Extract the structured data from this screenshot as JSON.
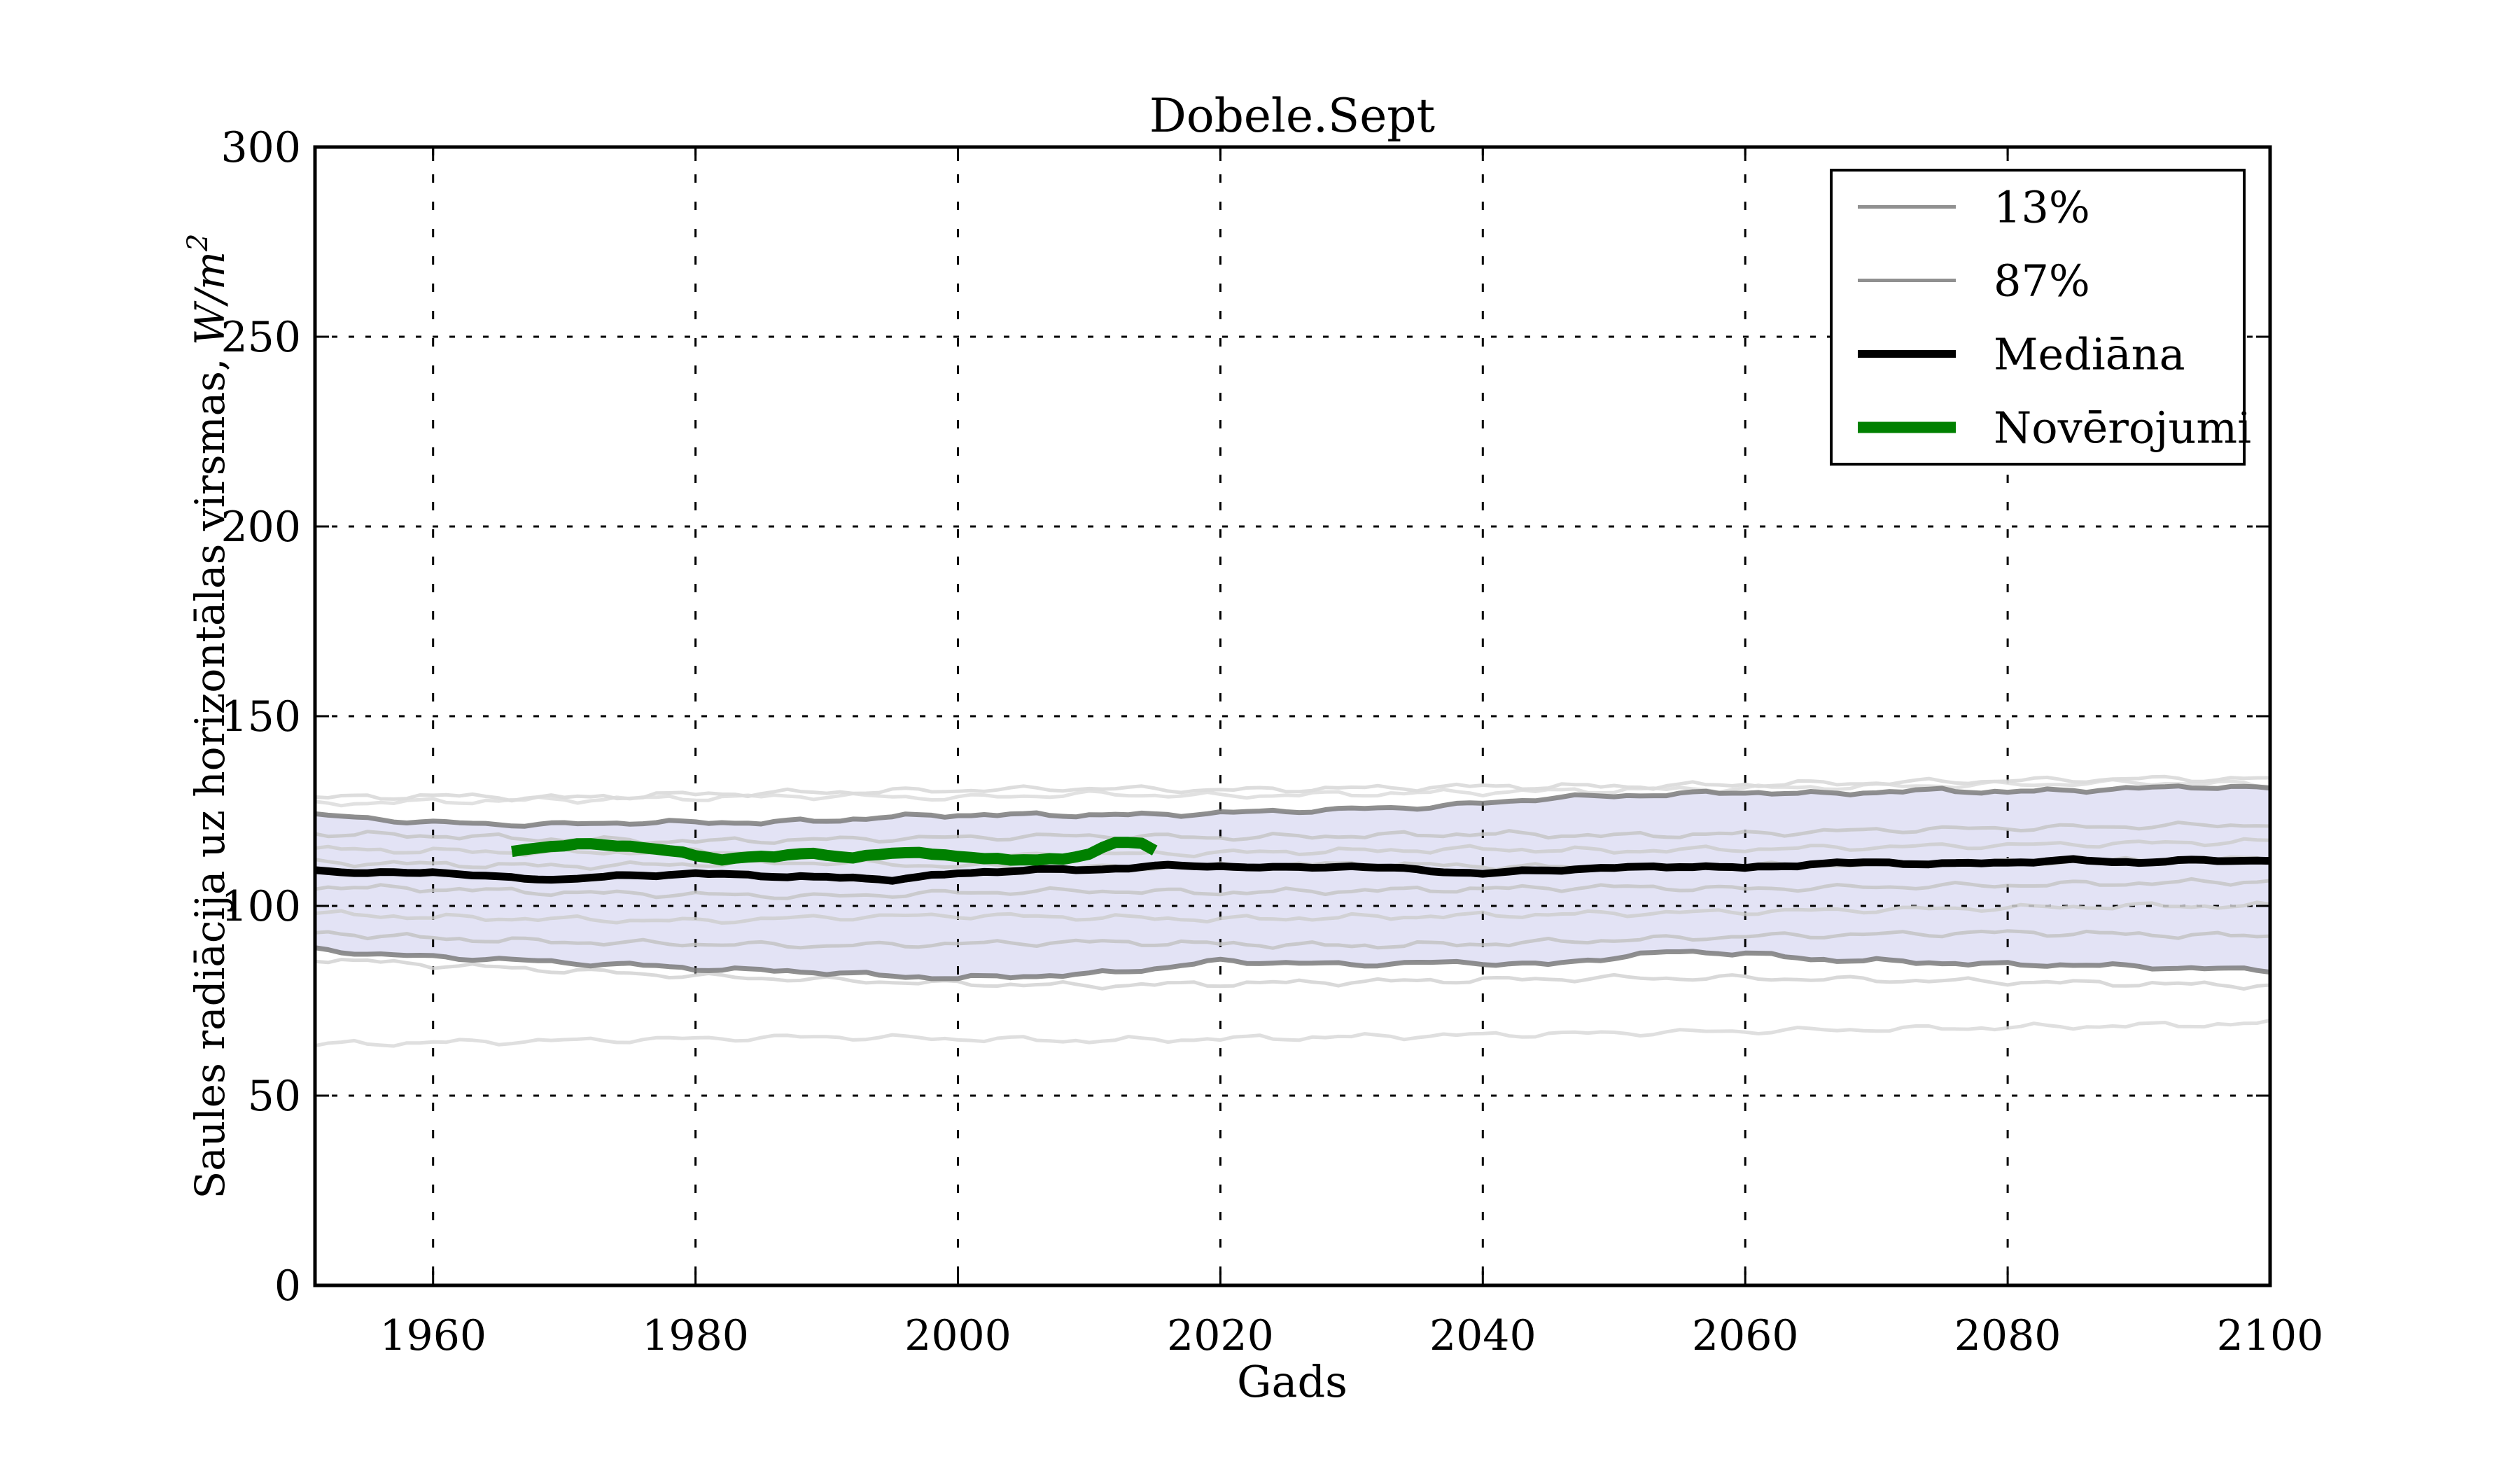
{
  "figure": {
    "title": "Dobele.Sept",
    "xlabel": "Gads",
    "ylabel_main": "Saules radiācija uz horizontālas virsmas, ",
    "ylabel_unit": "W/m",
    "ylabel_exponent": "2"
  },
  "chart_data": {
    "type": "line",
    "title": "Dobele.Sept",
    "xlabel": "Gads",
    "ylabel": "Saules radiācija uz horizontālas virsmas, W/m^2",
    "xlim": [
      1951,
      2100
    ],
    "ylim": [
      0,
      300
    ],
    "xticks": [
      1960,
      1980,
      2000,
      2020,
      2040,
      2060,
      2080,
      2100
    ],
    "yticks": [
      0,
      50,
      100,
      150,
      200,
      250,
      300
    ],
    "grid": true,
    "legend_position": "upper right",
    "colors": {
      "median": "#000000",
      "observations": "#008000",
      "percentile_edge": "#7b7b7b",
      "band_fill": "#e3e3f5",
      "grid": "#000000",
      "spine": "#000000"
    },
    "legend": [
      {
        "label": "13%",
        "color": "#909090",
        "line_width": 5
      },
      {
        "label": "87%",
        "color": "#909090",
        "line_width": 5
      },
      {
        "label": "Mediāna",
        "color": "#000000",
        "line_width": 11
      },
      {
        "label": "Novērojumi",
        "color": "#008000",
        "line_width": 16
      }
    ],
    "series": {
      "p13": {
        "label": "13%",
        "years": [
          1951,
          1955,
          1960,
          1965,
          1970,
          1975,
          1980,
          1985,
          1990,
          1995,
          2000,
          2005,
          2010,
          2015,
          2020,
          2025,
          2030,
          2035,
          2040,
          2045,
          2050,
          2055,
          2060,
          2065,
          2070,
          2075,
          2080,
          2085,
          2090,
          2095,
          2100
        ],
        "values": [
          88.5,
          87.5,
          86.5,
          86.0,
          85.0,
          84.5,
          83.5,
          83.0,
          82.5,
          81.5,
          81.0,
          81.5,
          82.0,
          83.5,
          85.5,
          85.0,
          84.5,
          85.0,
          85.0,
          84.5,
          86.5,
          88.0,
          87.5,
          86.0,
          85.5,
          85.0,
          84.5,
          84.5,
          84.0,
          83.5,
          83.0
        ]
      },
      "p87": {
        "label": "87%",
        "years": [
          1951,
          1955,
          1960,
          1965,
          1970,
          1975,
          1980,
          1985,
          1990,
          1995,
          2000,
          2005,
          2010,
          2015,
          2020,
          2025,
          2030,
          2035,
          2040,
          2045,
          2050,
          2055,
          2060,
          2065,
          2070,
          2075,
          2080,
          2085,
          2090,
          2095,
          2100
        ],
        "values": [
          124.0,
          123.0,
          122.0,
          121.5,
          121.5,
          122.0,
          122.0,
          122.0,
          122.5,
          123.5,
          124.0,
          124.0,
          124.0,
          124.0,
          124.5,
          125.0,
          125.5,
          126.0,
          127.0,
          128.5,
          129.0,
          129.5,
          130.0,
          129.5,
          130.0,
          130.5,
          130.0,
          130.5,
          131.0,
          131.5,
          131.0
        ]
      },
      "median": {
        "label": "Mediāna",
        "years": [
          1951,
          1955,
          1960,
          1965,
          1970,
          1975,
          1980,
          1985,
          1990,
          1995,
          2000,
          2005,
          2010,
          2015,
          2020,
          2025,
          2030,
          2035,
          2040,
          2045,
          2050,
          2055,
          2060,
          2065,
          2070,
          2075,
          2080,
          2085,
          2090,
          2095,
          2100
        ],
        "values": [
          109.5,
          108.5,
          109.0,
          107.5,
          107.0,
          108.0,
          108.5,
          108.0,
          107.5,
          107.0,
          108.5,
          109.5,
          109.5,
          110.5,
          110.5,
          110.0,
          110.5,
          109.5,
          108.5,
          109.5,
          110.0,
          110.5,
          110.0,
          111.0,
          111.5,
          111.0,
          111.5,
          112.0,
          111.5,
          112.0,
          112.0
        ]
      },
      "observations": {
        "label": "Novērojumi",
        "years": [
          1966,
          1968,
          1970,
          1972,
          1974,
          1976,
          1978,
          1980,
          1982,
          1984,
          1986,
          1988,
          1990,
          1992,
          1994,
          1996,
          1998,
          2000,
          2002,
          2004,
          2006,
          2008,
          2010,
          2012,
          2014,
          2015
        ],
        "values": [
          114.5,
          115.5,
          115.5,
          116.5,
          116.0,
          115.5,
          114.5,
          113.0,
          112.5,
          113.0,
          113.0,
          113.5,
          113.5,
          113.0,
          113.5,
          114.0,
          113.5,
          113.5,
          112.5,
          112.0,
          112.0,
          112.5,
          114.0,
          116.5,
          116.5,
          114.5
        ]
      },
      "ensemble": [
        {
          "color": "#d7d7d7",
          "years": [
            1951,
            1960,
            1970,
            1980,
            1990,
            2000,
            2010,
            2020,
            2030,
            2040,
            2050,
            2060,
            2070,
            2080,
            2090,
            2100
          ],
          "values": [
            128.5,
            129.0,
            128.5,
            129.5,
            130.0,
            130.5,
            131.0,
            130.5,
            131.0,
            131.5,
            131.5,
            132.0,
            132.5,
            133.0,
            133.5,
            133.5
          ]
        },
        {
          "color": "#dcdcdc",
          "years": [
            1951,
            1960,
            1970,
            1980,
            1990,
            2000,
            2010,
            2020,
            2030,
            2040,
            2050,
            2060,
            2070,
            2080,
            2090,
            2100
          ],
          "values": [
            127.0,
            127.5,
            128.0,
            128.5,
            129.0,
            128.5,
            129.5,
            129.0,
            129.5,
            130.0,
            130.5,
            131.0,
            131.5,
            132.0,
            132.5,
            132.0
          ]
        },
        {
          "color": "#c6c6c6",
          "years": [
            1951,
            1960,
            1970,
            1980,
            1990,
            2000,
            2010,
            2020,
            2030,
            2040,
            2050,
            2060,
            2070,
            2080,
            2090,
            2100
          ],
          "values": [
            119.0,
            118.5,
            117.5,
            117.0,
            117.5,
            118.0,
            118.5,
            118.0,
            118.5,
            119.0,
            118.5,
            119.0,
            120.0,
            120.5,
            121.0,
            121.5
          ]
        },
        {
          "color": "#cccccc",
          "years": [
            1951,
            1960,
            1970,
            1980,
            1990,
            2000,
            2010,
            2020,
            2030,
            2040,
            2050,
            2060,
            2070,
            2080,
            2090,
            2100
          ],
          "values": [
            115.0,
            114.5,
            114.0,
            114.5,
            113.5,
            113.0,
            113.5,
            114.0,
            114.5,
            115.0,
            114.5,
            115.0,
            115.5,
            116.0,
            116.5,
            117.0
          ]
        },
        {
          "color": "#c9c9c9",
          "years": [
            1951,
            1960,
            1970,
            1980,
            1990,
            2000,
            2010,
            2020,
            2030,
            2040,
            2050,
            2060,
            2070,
            2080,
            2090,
            2100
          ],
          "values": [
            111.5,
            111.0,
            110.5,
            111.0,
            111.5,
            110.5,
            110.0,
            110.5,
            111.0,
            110.5,
            110.0,
            110.5,
            111.0,
            111.5,
            112.0,
            112.5
          ]
        },
        {
          "color": "#c6c6c6",
          "years": [
            1951,
            1960,
            1970,
            1980,
            1990,
            2000,
            2010,
            2020,
            2030,
            2040,
            2050,
            2060,
            2070,
            2080,
            2090,
            2100
          ],
          "values": [
            105.0,
            104.5,
            103.5,
            103.0,
            102.5,
            103.5,
            104.0,
            103.5,
            104.0,
            104.5,
            105.0,
            104.5,
            105.0,
            105.5,
            106.0,
            106.5
          ]
        },
        {
          "color": "#cecece",
          "years": [
            1951,
            1960,
            1970,
            1980,
            1990,
            2000,
            2010,
            2020,
            2030,
            2040,
            2050,
            2060,
            2070,
            2080,
            2090,
            2100
          ],
          "values": [
            98.0,
            97.0,
            96.5,
            96.0,
            97.0,
            97.5,
            97.0,
            96.5,
            97.0,
            97.5,
            98.0,
            98.5,
            99.0,
            99.5,
            100.0,
            100.0
          ]
        },
        {
          "color": "#c3c3c3",
          "years": [
            1951,
            1960,
            1970,
            1980,
            1990,
            2000,
            2010,
            2020,
            2030,
            2040,
            2050,
            2060,
            2070,
            2080,
            2090,
            2100
          ],
          "values": [
            93.0,
            91.5,
            90.5,
            90.0,
            89.5,
            90.0,
            90.5,
            90.0,
            89.5,
            90.0,
            91.0,
            92.0,
            92.5,
            93.0,
            92.5,
            92.0
          ]
        },
        {
          "color": "#d2d2d2",
          "years": [
            1951,
            1960,
            1970,
            1980,
            1990,
            2000,
            2010,
            2020,
            2030,
            2040,
            2050,
            2060,
            2070,
            2080,
            2090,
            2100
          ],
          "values": [
            86.0,
            84.5,
            83.0,
            81.5,
            80.5,
            79.5,
            79.0,
            79.5,
            80.0,
            80.5,
            81.0,
            81.0,
            80.5,
            80.0,
            79.5,
            79.0
          ]
        },
        {
          "color": "#d9d9d9",
          "years": [
            1951,
            1960,
            1970,
            1980,
            1990,
            2000,
            2010,
            2020,
            2030,
            2040,
            2050,
            2060,
            2070,
            2080,
            2090,
            2100
          ],
          "values": [
            63.5,
            64.0,
            64.5,
            65.0,
            65.5,
            65.0,
            64.5,
            65.0,
            65.5,
            66.0,
            66.5,
            67.0,
            67.5,
            68.0,
            68.5,
            69.0
          ]
        }
      ]
    }
  }
}
